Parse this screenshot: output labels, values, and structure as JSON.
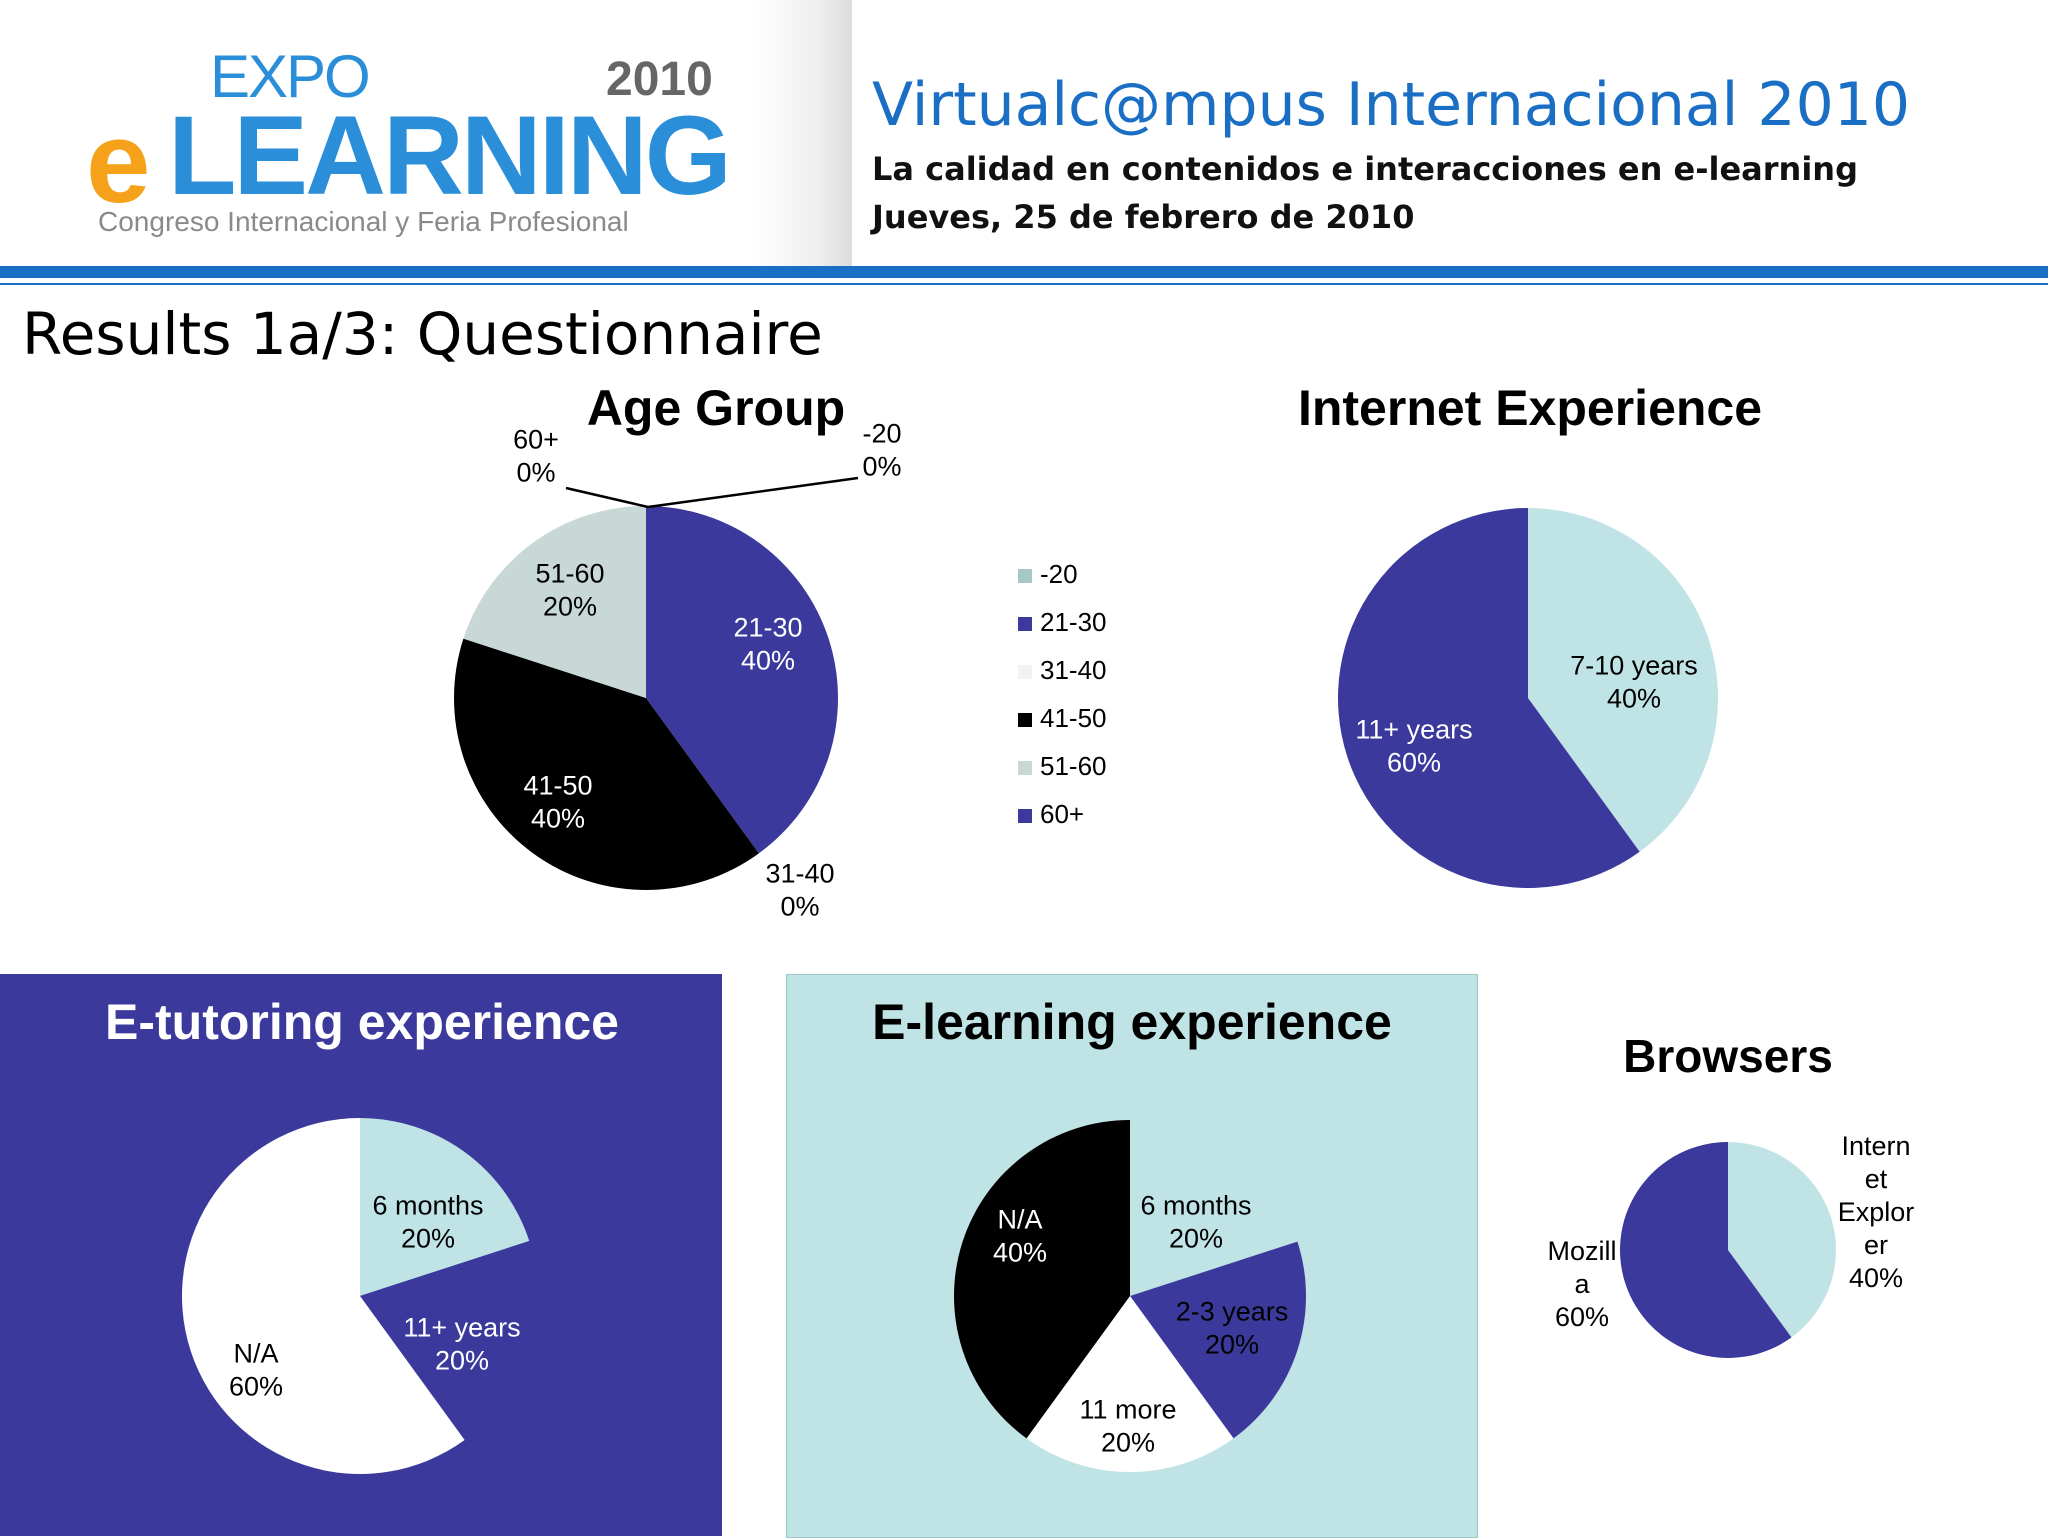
{
  "header": {
    "logo": {
      "expo": "EXPO",
      "year": "2010",
      "e": "e",
      "learning": "LEARNING",
      "subtitle": "Congreso Internacional y Feria Profesional"
    },
    "title": "Virtualc@mpus Internacional 2010",
    "subtitle": "La calidad en contenidos e interacciones en e-learning",
    "date": "Jueves, 25 de febrero de 2010"
  },
  "slide_title": "Results 1a/3: Questionnaire",
  "colors": {
    "accent_blue": "#1a6ec4",
    "dark_purple": "#3b3a9c",
    "light_teal": "#c0e3e5",
    "light_gray": "#c8d8d6",
    "black": "#000000",
    "white": "#ffffff",
    "orange": "#f5a21a"
  },
  "chart_data": [
    {
      "type": "pie",
      "title": "Age Group",
      "categories": [
        "-20",
        "21-30",
        "31-40",
        "41-50",
        "51-60",
        "60+"
      ],
      "values": [
        0,
        40,
        0,
        40,
        20,
        0
      ],
      "labels": [
        "-20\n0%",
        "21-30\n40%",
        "31-40\n0%",
        "41-50\n40%",
        "51-60\n20%",
        "60+\n0%"
      ],
      "colors": [
        "#a6c8c4",
        "#3b3a9c",
        "#f2f2f2",
        "#000000",
        "#c8d8d6",
        "#3b3a9c"
      ],
      "legend": {
        "placement": "right",
        "entries": [
          "-20",
          "21-30",
          "31-40",
          "41-50",
          "51-60",
          "60+"
        ]
      }
    },
    {
      "type": "pie",
      "title": "Internet Experience",
      "categories": [
        "7-10 years",
        "11+ years"
      ],
      "values": [
        40,
        60
      ],
      "labels": [
        "7-10 years\n40%",
        "11+ years\n60%"
      ],
      "colors": [
        "#c0e3e5",
        "#3b3a9c"
      ]
    },
    {
      "type": "pie",
      "title": "E-tutoring experience",
      "categories": [
        "6 months",
        "11+ years",
        "N/A"
      ],
      "values": [
        20,
        20,
        60
      ],
      "labels": [
        "6 months\n20%",
        "11+ years\n20%",
        "N/A\n60%"
      ],
      "colors": [
        "#c0e3e5",
        "#3b3a9c",
        "#ffffff"
      ]
    },
    {
      "type": "pie",
      "title": "E-learning experience",
      "categories": [
        "6 months",
        "2-3 years",
        "11 more",
        "N/A"
      ],
      "values": [
        20,
        20,
        20,
        40
      ],
      "labels": [
        "6 months\n20%",
        "2-3 years\n20%",
        "11 more\n20%",
        "N/A\n40%"
      ],
      "colors": [
        "#c0e3e5",
        "#3b3a9c",
        "#ffffff",
        "#000000"
      ]
    },
    {
      "type": "pie",
      "title": "Browsers",
      "categories": [
        "Internet Explorer",
        "Mozilla"
      ],
      "values": [
        40,
        60
      ],
      "labels": [
        "Intern\net\nExplor\ner\n40%",
        "Mozill\na\n60%"
      ],
      "colors": [
        "#c0e3e5",
        "#3b3a9c"
      ]
    }
  ]
}
